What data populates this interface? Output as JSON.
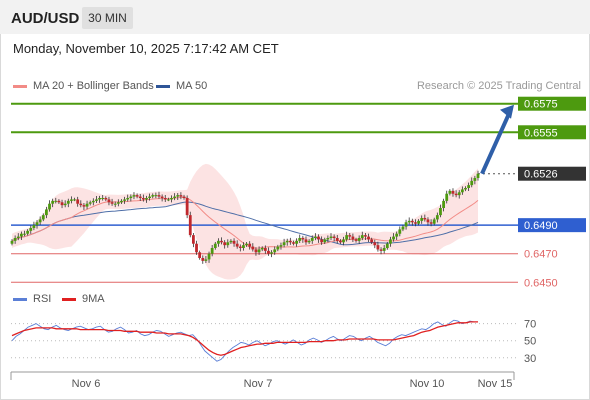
{
  "header": {
    "pair": "AUD/USD",
    "timeframe": "30 MIN"
  },
  "datetime": "Monday, November 10, 2025 7:17:42 AM CET",
  "legend": {
    "ma20": {
      "label": "MA 20 + Bollinger Bands",
      "color": "#f28b86"
    },
    "ma50": {
      "label": "MA 50",
      "color": "#2f5597"
    }
  },
  "credit": "Research © 2025 Trading Central",
  "rsi_legend": {
    "rsi": {
      "label": "RSI",
      "color": "#5b7fd6"
    },
    "ma9": {
      "label": "9MA",
      "color": "#e02020"
    }
  },
  "chart_data": [
    {
      "type": "candlestick",
      "ylim": [
        0.64432,
        0.65832
      ],
      "price_levels": [
        {
          "label": "0.6575",
          "value": 0.6575,
          "kind": "resistance",
          "color": "#4d9a0f"
        },
        {
          "label": "0.6555",
          "value": 0.6555,
          "kind": "resistance",
          "color": "#4d9a0f"
        },
        {
          "label": "0.6526",
          "value": 0.6526,
          "kind": "current",
          "color": "#333333"
        },
        {
          "label": "0.6490",
          "value": 0.649,
          "kind": "pivot",
          "color": "#2f5fd0"
        },
        {
          "label": "0.6470",
          "value": 0.647,
          "kind": "support",
          "color": "#e06666"
        },
        {
          "label": "0.6450",
          "value": 0.645,
          "kind": "support",
          "color": "#e06666"
        }
      ],
      "arrow": {
        "from_value": 0.6526,
        "to_value": 0.6575,
        "direction": "up"
      },
      "candles": [
        0.6479,
        0.6481,
        0.6482,
        0.6484,
        0.6484,
        0.6486,
        0.6488,
        0.649,
        0.6492,
        0.6494,
        0.6497,
        0.6501,
        0.6505,
        0.6507,
        0.6507,
        0.6506,
        0.6504,
        0.6505,
        0.6507,
        0.6508,
        0.6508,
        0.6505,
        0.6504,
        0.6503,
        0.6505,
        0.6506,
        0.6507,
        0.6508,
        0.6509,
        0.6509,
        0.6508,
        0.6506,
        0.6505,
        0.6505,
        0.6506,
        0.6507,
        0.6508,
        0.6509,
        0.651,
        0.6511,
        0.651,
        0.6509,
        0.6508,
        0.6509,
        0.651,
        0.6511,
        0.6511,
        0.651,
        0.6509,
        0.6508,
        0.6508,
        0.6509,
        0.651,
        0.6511,
        0.651,
        0.6509,
        0.6497,
        0.6483,
        0.6477,
        0.6471,
        0.6467,
        0.6465,
        0.6466,
        0.647,
        0.6474,
        0.6477,
        0.6479,
        0.6478,
        0.6476,
        0.6478,
        0.6479,
        0.6477,
        0.6475,
        0.6474,
        0.6476,
        0.6477,
        0.6475,
        0.6473,
        0.6471,
        0.6473,
        0.6474,
        0.6472,
        0.647,
        0.6471,
        0.6473,
        0.6475,
        0.6476,
        0.6478,
        0.6479,
        0.6478,
        0.6477,
        0.6479,
        0.6481,
        0.648,
        0.6478,
        0.6479,
        0.6481,
        0.6482,
        0.648,
        0.6478,
        0.648,
        0.6481,
        0.6482,
        0.6481,
        0.6479,
        0.6478,
        0.648,
        0.6483,
        0.6482,
        0.648,
        0.6479,
        0.6481,
        0.6483,
        0.6482,
        0.648,
        0.6478,
        0.6476,
        0.6473,
        0.6472,
        0.6474,
        0.6477,
        0.648,
        0.6482,
        0.6484,
        0.6487,
        0.6489,
        0.6492,
        0.6493,
        0.6492,
        0.6491,
        0.6493,
        0.6495,
        0.6494,
        0.6492,
        0.6491,
        0.6494,
        0.6497,
        0.6502,
        0.6507,
        0.6512,
        0.6514,
        0.6512,
        0.6511,
        0.6513,
        0.6515,
        0.6516,
        0.6518,
        0.6521,
        0.6523,
        0.6526
      ],
      "bollinger_bands": {
        "upper_near": 0.653,
        "lower_near": 0.6487
      }
    },
    {
      "type": "line",
      "title": "RSI",
      "ylim": [
        18,
        86
      ],
      "yticks": [
        70,
        50,
        30
      ],
      "xticks": [
        "Nov 6",
        "Nov 7",
        "Nov 10",
        "Nov 15"
      ],
      "series": [
        {
          "name": "RSI",
          "color": "#5b7fd6",
          "values": [
            50,
            55,
            58,
            62,
            66,
            68,
            70,
            67,
            64,
            63,
            66,
            68,
            65,
            63,
            62,
            64,
            66,
            67,
            65,
            63,
            64,
            66,
            67,
            63,
            60,
            61,
            64,
            66,
            63,
            59,
            60,
            62,
            58,
            56,
            57,
            60,
            62,
            61,
            58,
            55,
            57,
            59,
            60,
            58,
            56,
            57,
            52,
            45,
            38,
            34,
            30,
            26,
            28,
            33,
            38,
            42,
            45,
            48,
            47,
            45,
            48,
            50,
            47,
            44,
            46,
            49,
            50,
            48,
            46,
            48,
            51,
            48,
            45,
            47,
            51,
            53,
            51,
            48,
            50,
            53,
            55,
            52,
            50,
            53,
            56,
            55,
            52,
            50,
            53,
            55,
            52,
            48,
            46,
            44,
            47,
            52,
            55,
            57,
            56,
            58,
            60,
            62,
            64,
            63,
            66,
            70,
            72,
            69,
            67,
            71,
            74,
            73,
            70,
            71,
            73,
            72,
            72
          ]
        },
        {
          "name": "9MA",
          "color": "#e02020",
          "values": [
            56,
            58,
            60,
            62,
            63,
            64,
            65,
            65,
            65,
            65,
            65,
            64,
            64,
            64,
            64,
            64,
            64,
            63,
            63,
            63,
            63,
            63,
            63,
            63,
            62,
            62,
            62,
            62,
            61,
            61,
            61,
            61,
            60,
            60,
            60,
            60,
            59,
            59,
            59,
            58,
            58,
            58,
            58,
            57,
            56,
            54,
            51,
            47,
            43,
            39,
            36,
            34,
            33,
            34,
            36,
            38,
            40,
            42,
            43,
            44,
            45,
            46,
            46,
            47,
            47,
            47,
            48,
            48,
            48,
            48,
            48,
            48,
            48,
            48,
            49,
            49,
            49,
            49,
            50,
            50,
            50,
            51,
            51,
            51,
            52,
            52,
            52,
            52,
            52,
            52,
            52,
            51,
            51,
            51,
            51,
            51,
            52,
            53,
            54,
            55,
            56,
            58,
            60,
            61,
            62,
            64,
            66,
            67,
            68,
            69,
            70,
            71,
            71,
            71,
            72,
            72,
            72
          ]
        }
      ]
    }
  ]
}
